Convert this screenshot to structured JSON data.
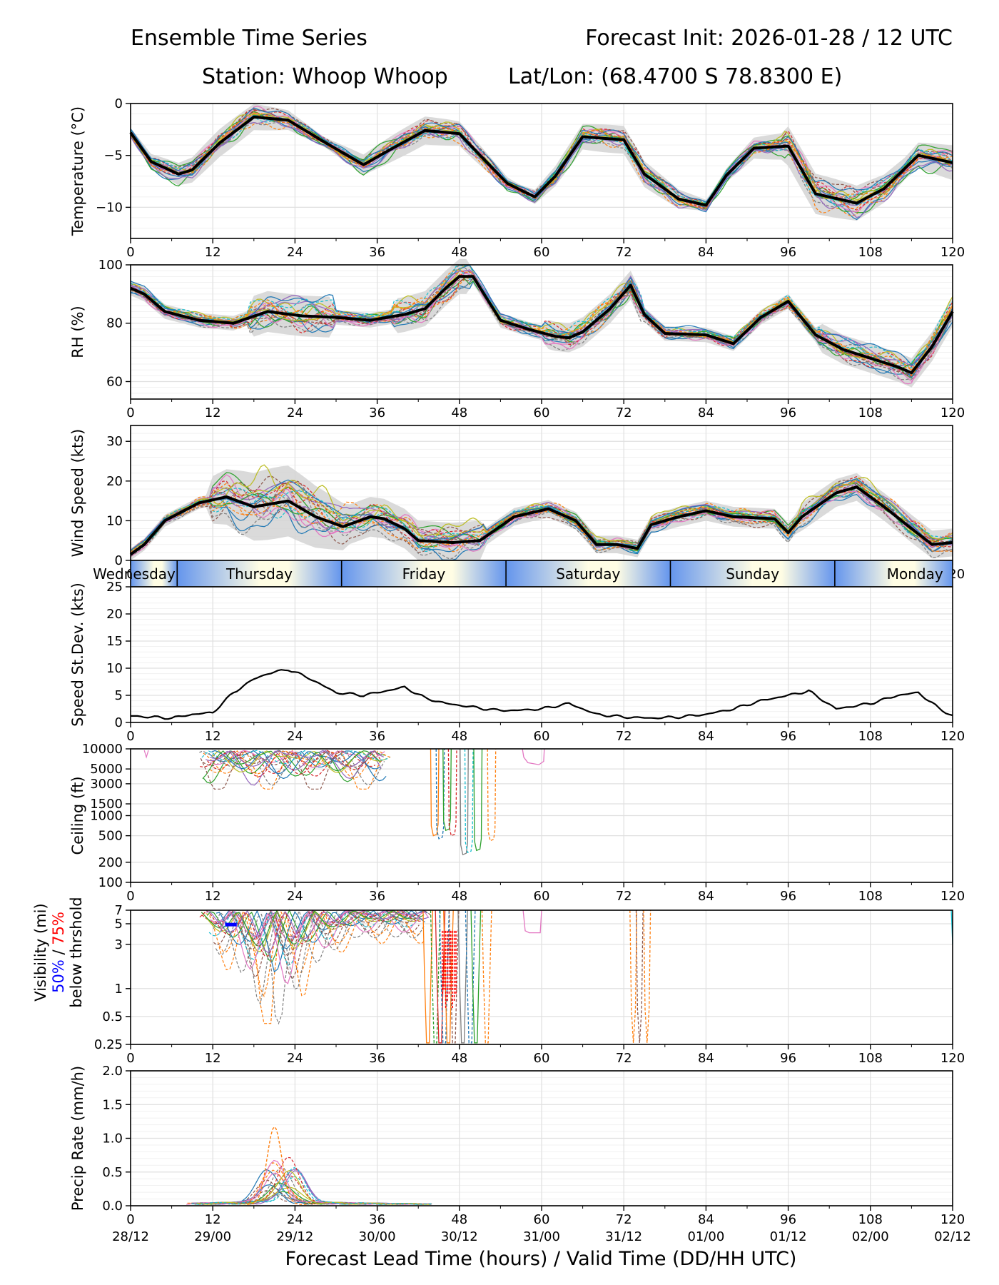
{
  "header": {
    "title_left": "Ensemble Time Series",
    "title_right": "Forecast Init: 2026-01-28 / 12 UTC",
    "station": "Station: Whoop Whoop",
    "latlon": "Lat/Lon: (68.4700 S 78.8300 E)"
  },
  "xlabel": "Forecast Lead Time (hours) / Valid Time (DD/HH UTC)",
  "x_ticks": [
    "0",
    "12",
    "24",
    "36",
    "48",
    "60",
    "72",
    "84",
    "96",
    "108",
    "120"
  ],
  "valid_ticks": [
    "28/12",
    "29/00",
    "29/12",
    "30/00",
    "30/12",
    "31/00",
    "31/12",
    "01/00",
    "01/12",
    "02/00",
    "02/12"
  ],
  "days": [
    "Wednesday",
    "Thursday",
    "Friday",
    "Saturday",
    "Sunday",
    "Monday"
  ],
  "visibility_label": {
    "line1": "Visibility (mi)",
    "p50": "50%",
    "sep": " / ",
    "p75": "75%",
    "line3": "below thrshold"
  },
  "colors": {
    "members": [
      "#1f77b4",
      "#ff7f0e",
      "#2ca02c",
      "#d62728",
      "#9467bd",
      "#8c564b",
      "#e377c2",
      "#7f7f7f",
      "#bcbd22",
      "#17becf"
    ],
    "mean": "#000000",
    "spread": "#d3d3d3",
    "p50": "#0000ff",
    "p75": "#ff0000",
    "day_band_blue": "#6495ed",
    "day_band_cream": "#fffde4"
  },
  "chart_data": [
    {
      "type": "line",
      "ylabel": "Temperature (°C)",
      "ylim": [
        -13,
        0
      ],
      "yticks": [
        "0",
        "−5",
        "−10"
      ],
      "ytick_values": [
        0,
        -5,
        -10
      ],
      "mean": {
        "x": [
          0,
          3,
          7,
          9,
          13,
          18,
          23,
          28,
          34,
          38,
          43,
          48,
          50,
          55,
          59,
          62,
          66,
          72,
          75,
          80,
          84,
          87,
          91,
          96,
          100,
          106,
          110,
          115,
          120
        ],
        "y": [
          -2.8,
          -5.6,
          -6.8,
          -6.4,
          -3.8,
          -1.3,
          -1.6,
          -3.6,
          -5.9,
          -4.4,
          -2.6,
          -2.9,
          -4.3,
          -7.7,
          -9.0,
          -7.0,
          -3.2,
          -3.5,
          -6.8,
          -9.2,
          -9.8,
          -6.9,
          -4.3,
          -4.1,
          -8.7,
          -9.6,
          -8.2,
          -5.0,
          -5.7
        ]
      }
    },
    {
      "type": "line",
      "ylabel": "RH (%)",
      "ylim": [
        54,
        100
      ],
      "yticks": [
        "100",
        "80",
        "60"
      ],
      "ytick_values": [
        100,
        80,
        60
      ],
      "mean": {
        "x": [
          0,
          2,
          5,
          10,
          15,
          20,
          25,
          30,
          35,
          40,
          43,
          46,
          48,
          50,
          54,
          58,
          62,
          64,
          66,
          70,
          73,
          75,
          78,
          84,
          88,
          92,
          96,
          100,
          104,
          108,
          112,
          114,
          117,
          120
        ],
        "y": [
          92,
          90,
          84,
          81,
          80,
          84,
          82.5,
          82,
          81,
          83,
          85,
          92,
          96,
          96,
          81,
          78,
          75.5,
          75,
          77,
          85,
          93,
          83,
          76.5,
          76,
          73,
          82,
          87.5,
          76,
          71,
          68,
          65,
          63,
          72,
          84
        ]
      }
    },
    {
      "type": "line",
      "ylabel": "Wind Speed (kts)",
      "ylim": [
        0,
        34
      ],
      "yticks": [
        "30",
        "20",
        "10",
        "0"
      ],
      "ytick_values": [
        30,
        20,
        10,
        0
      ],
      "mean": {
        "x": [
          0,
          2,
          5,
          10,
          14,
          18,
          23,
          27,
          31,
          35,
          37,
          40,
          42,
          47,
          51,
          56,
          61,
          65,
          68,
          71,
          74,
          76,
          80,
          84,
          88,
          94,
          96,
          98,
          103,
          106,
          110,
          114,
          117,
          120
        ],
        "y": [
          1.5,
          4,
          10,
          14.5,
          16,
          13.5,
          15,
          11,
          8.5,
          11,
          10.5,
          8,
          5,
          4.5,
          5,
          11,
          13,
          10,
          4,
          4,
          3,
          9,
          11,
          12.5,
          11,
          10.5,
          7,
          11,
          17,
          18.5,
          13.5,
          8,
          4,
          4.5
        ]
      }
    },
    {
      "type": "line",
      "ylabel": "Speed St.Dev. (kts)",
      "ylim": [
        0,
        25
      ],
      "yticks": [
        "25",
        "20",
        "15",
        "10",
        "5",
        "0"
      ],
      "ytick_values": [
        25,
        20,
        15,
        10,
        5,
        0
      ],
      "series": [
        {
          "name": "St.Dev.",
          "x": [
            0,
            3,
            6,
            9,
            12,
            15,
            18,
            20,
            23,
            26,
            30,
            34,
            38,
            40,
            43,
            46,
            49,
            53,
            56,
            60,
            64,
            68,
            72,
            76,
            80,
            84,
            88,
            92,
            96,
            99,
            103,
            108,
            112,
            115,
            118,
            120
          ],
          "y": [
            1.2,
            1.0,
            0.8,
            1.5,
            1.8,
            5.5,
            8,
            9,
            9.8,
            8.2,
            5.5,
            5,
            6,
            6.5,
            4.5,
            3.5,
            3,
            2.3,
            2.2,
            2.5,
            3.5,
            1.5,
            1.0,
            0.8,
            1.0,
            1.5,
            2.5,
            4,
            5,
            5.8,
            2.5,
            3.5,
            5,
            5.5,
            2.6,
            1.2
          ]
        }
      ]
    },
    {
      "type": "line",
      "ylabel": "Ceiling (ft)",
      "scale": "log",
      "ylim": [
        100,
        10000
      ],
      "yticks": [
        "10000",
        "5000",
        "3000",
        "1500",
        "1000",
        "500",
        "200",
        "100"
      ],
      "ytick_values": [
        10000,
        5000,
        3000,
        1500,
        1000,
        500,
        200,
        100
      ]
    },
    {
      "type": "line",
      "ylabel": "Visibility (mi)",
      "scale": "log",
      "ylim": [
        0.25,
        7
      ],
      "yticks": [
        "7",
        "5",
        "3",
        "1",
        "0.5",
        "0.25"
      ],
      "ytick_values": [
        7,
        5,
        3,
        1,
        0.5,
        0.25
      ]
    },
    {
      "type": "line",
      "ylabel": "Precip Rate (mm/h)",
      "ylim": [
        0,
        2.0
      ],
      "yticks": [
        "2.0",
        "1.5",
        "1.0",
        "0.5",
        "0.0"
      ],
      "ytick_values": [
        2.0,
        1.5,
        1.0,
        0.5,
        0.0
      ],
      "peak": {
        "x": 21,
        "y": 1.15
      }
    }
  ]
}
